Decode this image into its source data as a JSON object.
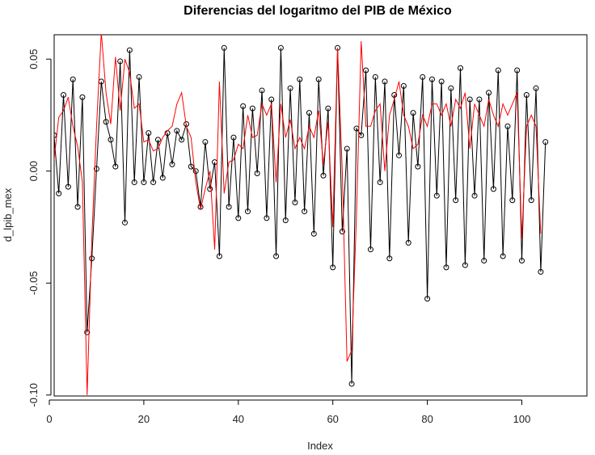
{
  "chart_data": {
    "type": "line",
    "title": "Diferencias del logaritmo del PIB de México",
    "xlabel": "Index",
    "ylabel": "d_lpib_mex",
    "xlim": [
      0,
      107
    ],
    "ylim": [
      -0.1,
      0.06
    ],
    "x_ticks": [
      0,
      20,
      40,
      60,
      80,
      100
    ],
    "x_tick_labels": [
      "0",
      "20",
      "40",
      "60",
      "80",
      "100"
    ],
    "y_ticks": [
      -0.1,
      -0.05,
      0.0,
      0.05
    ],
    "y_tick_labels": [
      "-0.10",
      "-0.05",
      "0.00",
      "0.05"
    ],
    "grid": false,
    "legend": "none",
    "series": [
      {
        "style": "points-and-lines",
        "color": "#000000",
        "x": [
          1,
          2,
          3,
          4,
          5,
          6,
          7,
          8,
          9,
          10,
          11,
          12,
          13,
          14,
          15,
          16,
          17,
          18,
          19,
          20,
          21,
          22,
          23,
          24,
          25,
          26,
          27,
          28,
          29,
          30,
          31,
          32,
          33,
          34,
          35,
          36,
          37,
          38,
          39,
          40,
          41,
          42,
          43,
          44,
          45,
          46,
          47,
          48,
          49,
          50,
          51,
          52,
          53,
          54,
          55,
          56,
          57,
          58,
          59,
          60,
          61,
          62,
          63,
          64,
          65,
          66,
          67,
          68,
          69,
          70,
          71,
          72,
          73,
          74,
          75,
          76,
          77,
          78,
          79,
          80,
          81,
          82,
          83,
          84,
          85,
          86,
          87,
          88,
          89,
          90,
          91,
          92,
          93,
          94,
          95,
          96,
          97,
          98,
          99,
          100,
          101,
          102,
          103,
          104,
          105
        ],
        "values": [
          0.016,
          -0.01,
          0.034,
          -0.007,
          0.041,
          -0.016,
          0.033,
          -0.072,
          -0.039,
          0.001,
          0.04,
          0.022,
          0.014,
          0.002,
          0.049,
          -0.023,
          0.054,
          -0.005,
          0.042,
          -0.005,
          0.017,
          -0.005,
          0.014,
          -0.003,
          0.017,
          0.003,
          0.018,
          0.014,
          0.021,
          0.002,
          0.0,
          -0.016,
          0.013,
          -0.008,
          0.004,
          -0.038,
          0.055,
          -0.016,
          0.015,
          -0.021,
          0.029,
          -0.018,
          0.028,
          -0.001,
          0.036,
          -0.021,
          0.032,
          -0.038,
          0.055,
          -0.022,
          0.037,
          -0.014,
          0.041,
          -0.018,
          0.026,
          -0.028,
          0.041,
          -0.002,
          0.028,
          -0.043,
          0.055,
          -0.027,
          0.01,
          -0.095,
          0.019,
          0.016,
          0.045,
          -0.035,
          0.042,
          -0.005,
          0.04,
          -0.039,
          0.034,
          0.007,
          0.038,
          -0.032,
          0.026,
          0.002,
          0.042,
          -0.057,
          0.041,
          -0.011,
          0.04,
          -0.043,
          0.037,
          -0.013,
          0.046,
          -0.042,
          0.032,
          -0.011,
          0.032,
          -0.04,
          0.035,
          -0.008,
          0.045,
          -0.038,
          0.02,
          -0.013,
          0.045,
          -0.04,
          0.034,
          -0.013,
          0.037,
          -0.045,
          0.013
        ]
      },
      {
        "style": "line",
        "color": "#ff0000",
        "x": [
          1,
          2,
          3,
          4,
          5,
          6,
          7,
          8,
          9,
          10,
          11,
          12,
          13,
          14,
          15,
          16,
          17,
          18,
          19,
          20,
          21,
          22,
          23,
          24,
          25,
          26,
          27,
          28,
          29,
          30,
          31,
          32,
          33,
          34,
          35,
          36,
          37,
          38,
          39,
          40,
          41,
          42,
          43,
          44,
          45,
          46,
          47,
          48,
          49,
          50,
          51,
          52,
          53,
          54,
          55,
          56,
          57,
          58,
          59,
          60,
          61,
          62,
          63,
          64,
          65,
          66,
          67,
          68,
          69,
          70,
          71,
          72,
          73,
          74,
          75,
          76,
          77,
          78,
          79,
          80,
          81,
          82,
          83,
          84,
          85,
          86,
          87,
          88,
          89,
          90,
          91,
          92,
          93,
          94,
          95,
          96,
          97,
          98,
          99,
          100,
          101,
          102,
          103,
          104
        ],
        "values": [
          0.005,
          0.024,
          0.027,
          0.033,
          0.02,
          0.011,
          -0.005,
          -0.1,
          -0.03,
          0.02,
          0.062,
          0.035,
          0.021,
          0.051,
          0.027,
          0.05,
          0.044,
          0.028,
          0.03,
          0.013,
          0.014,
          0.009,
          0.01,
          0.015,
          0.018,
          0.02,
          0.03,
          0.035,
          0.02,
          0.015,
          -0.005,
          -0.017,
          -0.008,
          0.0,
          -0.035,
          0.04,
          -0.01,
          0.004,
          0.005,
          0.012,
          0.01,
          0.025,
          0.015,
          0.016,
          0.03,
          0.025,
          0.03,
          -0.005,
          0.03,
          0.015,
          0.023,
          0.01,
          0.015,
          0.01,
          0.02,
          0.015,
          0.027,
          0.003,
          0.022,
          -0.025,
          0.055,
          0.0,
          -0.085,
          -0.08,
          -0.02,
          0.058,
          0.02,
          0.02,
          0.027,
          0.03,
          0.0,
          0.025,
          0.032,
          0.04,
          0.025,
          0.02,
          0.01,
          0.012,
          0.025,
          0.02,
          0.03,
          0.03,
          0.025,
          0.03,
          0.02,
          0.032,
          0.028,
          0.035,
          0.01,
          0.03,
          0.025,
          0.02,
          0.032,
          0.025,
          0.02,
          0.03,
          0.025,
          0.03,
          0.035,
          -0.03,
          0.02,
          0.025,
          0.02,
          -0.028
        ]
      }
    ]
  }
}
